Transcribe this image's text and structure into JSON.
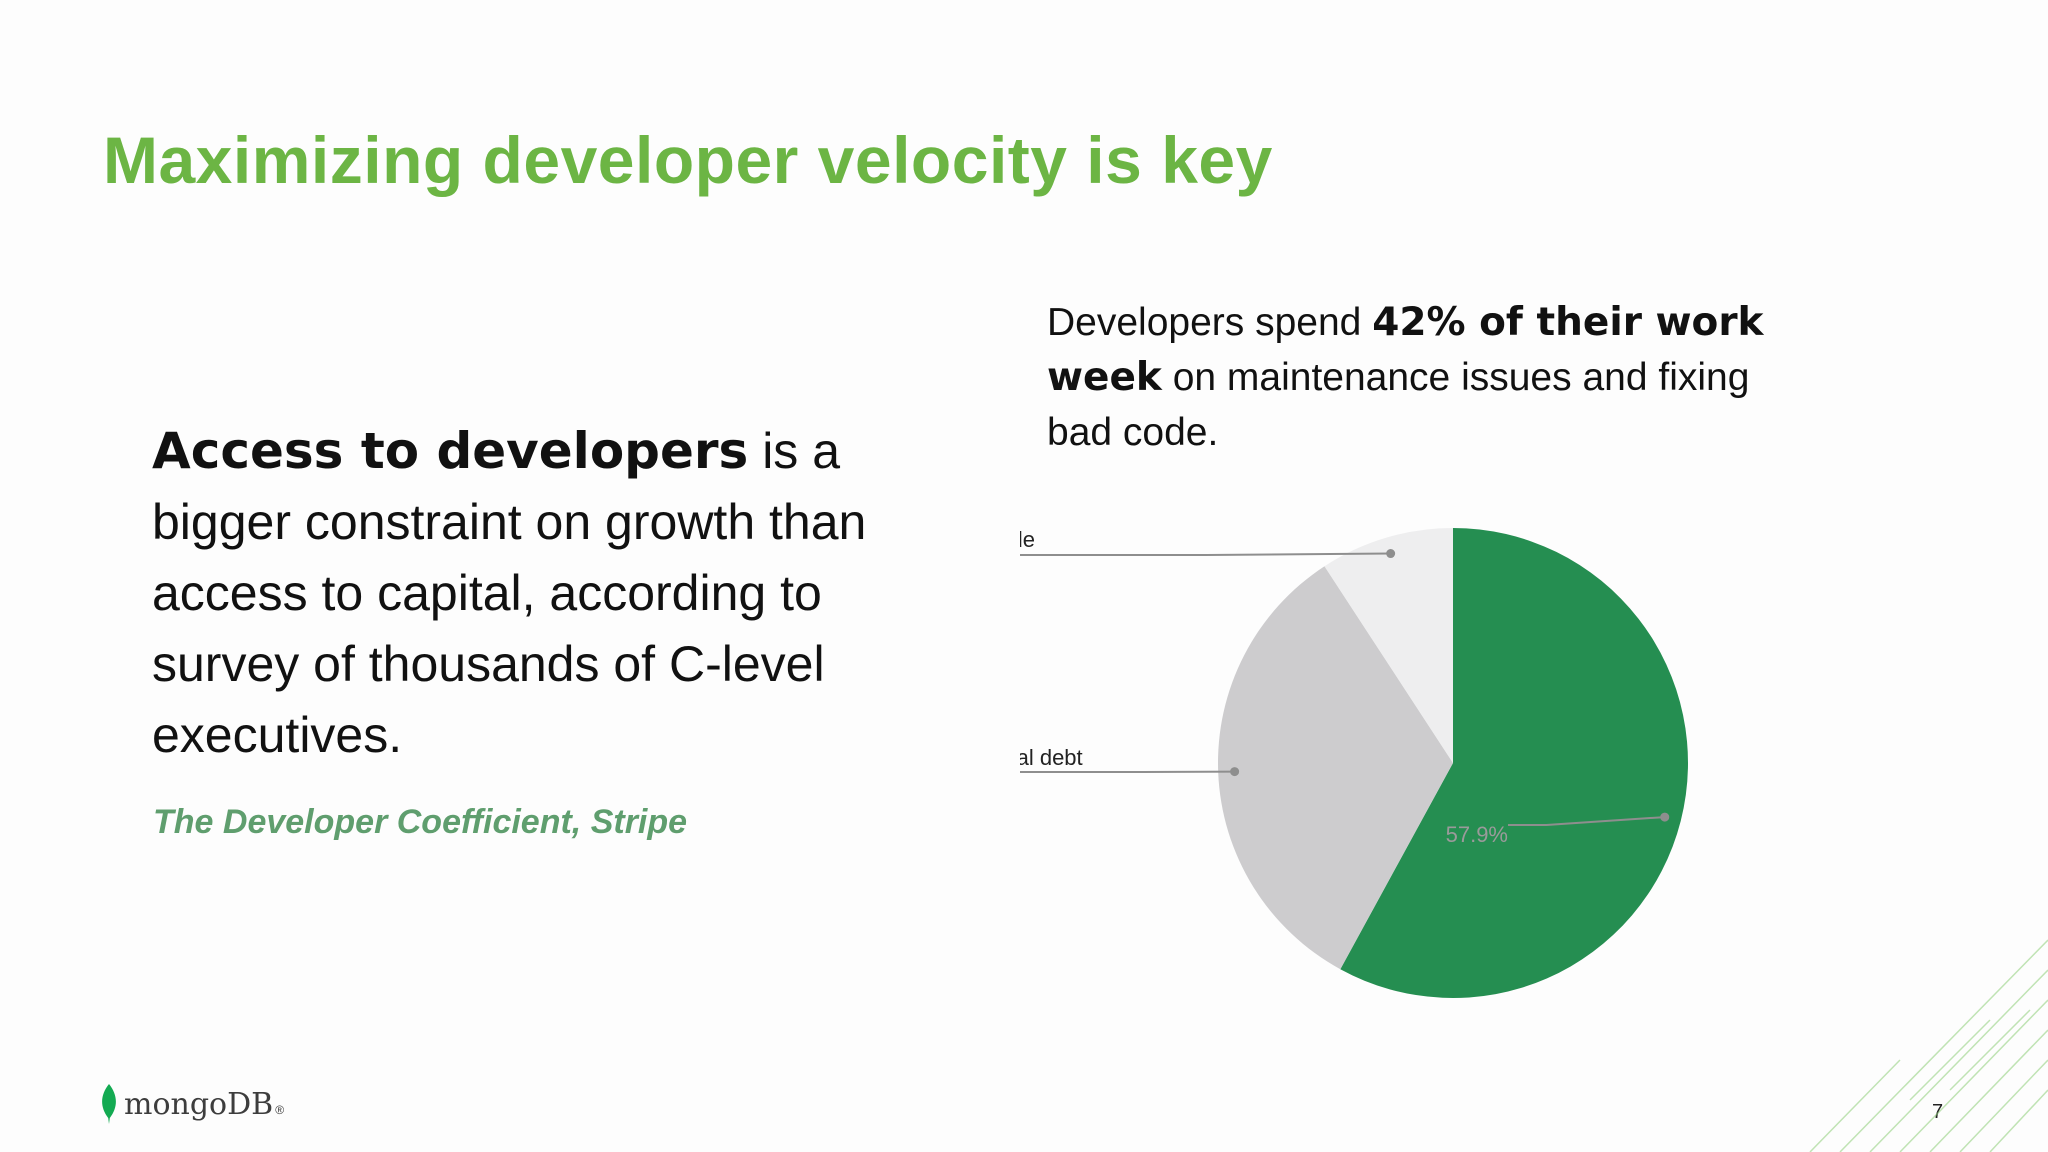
{
  "slide": {
    "title": "Maximizing developer velocity is key",
    "left": {
      "bold": "Access to developers",
      "rest": " is a bigger constraint on growth than access to capital, according to survey of thousands of C-level executives."
    },
    "source": "The Developer Coefficient, Stripe",
    "right": {
      "part1": "Developers spend ",
      "bold1": "42% of their work week",
      "part2": " on maintenance issues and fixing bad code."
    },
    "logo_text": "mongoDB",
    "logo_reg": "®",
    "page_number": "7"
  },
  "colors": {
    "title": "#6cb544",
    "source": "#5f9e6e",
    "main_slice": "#258e51",
    "technical_debt": "#cdccce",
    "bad_code": "#eeeeef",
    "logo_leaf": "#13aa52"
  },
  "chart_data": {
    "type": "pie",
    "title": "",
    "slices": [
      {
        "name": "",
        "label": "57.9%",
        "value": 57.9,
        "color": "#258e51"
      },
      {
        "name": "Technical debt",
        "label": "32.8%",
        "value": 32.8,
        "color": "#cdccce"
      },
      {
        "name": "Bad code",
        "label": "9.2%",
        "value": 9.2,
        "color": "#eeeeef"
      }
    ],
    "start_angle": "12 o'clock",
    "direction": "clockwise",
    "legend": "none"
  }
}
